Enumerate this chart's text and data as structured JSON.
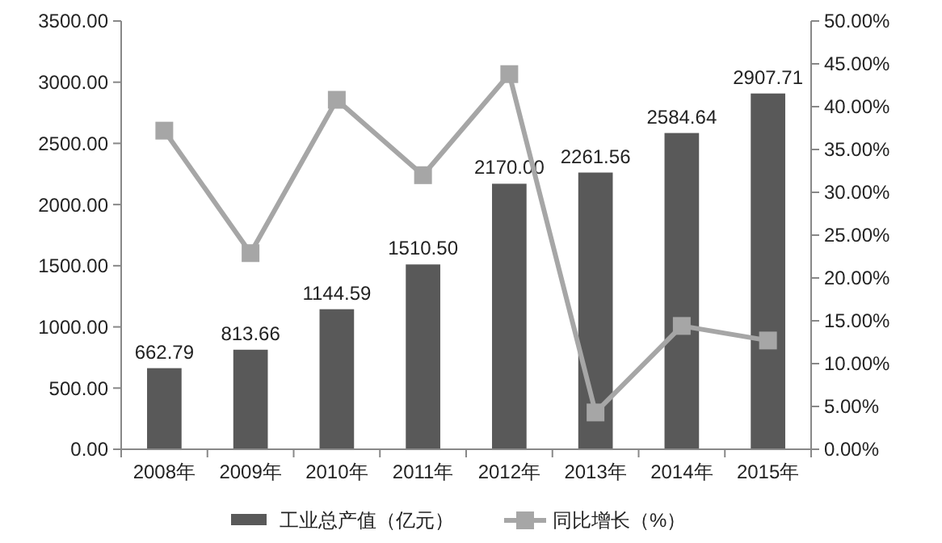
{
  "chart_data": {
    "type": "bar",
    "categories": [
      "2008年",
      "2009年",
      "2010年",
      "2011年",
      "2012年",
      "2013年",
      "2014年",
      "2015年"
    ],
    "series": [
      {
        "name": "工业总产值（亿元）",
        "color": "#595959",
        "values": [
          662.79,
          813.66,
          1144.59,
          1510.5,
          2170,
          2261.56,
          2584.64,
          2907.71
        ],
        "value_labels": [
          "662.79",
          "813.66",
          "1144.59",
          "1510.50",
          "2170.00",
          "2261.56",
          "2584.64",
          "2907.71"
        ]
      },
      {
        "name": "同比增长（%）",
        "type": "line",
        "axis": "y2",
        "color": "#a6a6a6",
        "marker": "square",
        "values": [
          37.2,
          22.9,
          40.8,
          32.0,
          43.8,
          4.3,
          14.4,
          12.7
        ]
      }
    ],
    "ylim": [
      0,
      3500
    ],
    "yticks": [
      {
        "value": 0,
        "label": "0.00"
      },
      {
        "value": 500,
        "label": "500.00"
      },
      {
        "value": 1000,
        "label": "1000.00"
      },
      {
        "value": 1500,
        "label": "1500.00"
      },
      {
        "value": 2000,
        "label": "2000.00"
      },
      {
        "value": 2500,
        "label": "2500.00"
      },
      {
        "value": 3000,
        "label": "3000.00"
      },
      {
        "value": 3500,
        "label": "3500.00"
      }
    ],
    "y2lim": [
      0,
      50
    ],
    "y2ticks": [
      {
        "value": 0,
        "label": "0.00%"
      },
      {
        "value": 5,
        "label": "5.00%"
      },
      {
        "value": 10,
        "label": "10.00%"
      },
      {
        "value": 15,
        "label": "15.00%"
      },
      {
        "value": 20,
        "label": "20.00%"
      },
      {
        "value": 25,
        "label": "25.00%"
      },
      {
        "value": 30,
        "label": "30.00%"
      },
      {
        "value": 35,
        "label": "35.00%"
      },
      {
        "value": 40,
        "label": "40.00%"
      },
      {
        "value": 45,
        "label": "45.00%"
      },
      {
        "value": 50,
        "label": "50.00%"
      }
    ],
    "grid": false,
    "legend": "bottom"
  }
}
